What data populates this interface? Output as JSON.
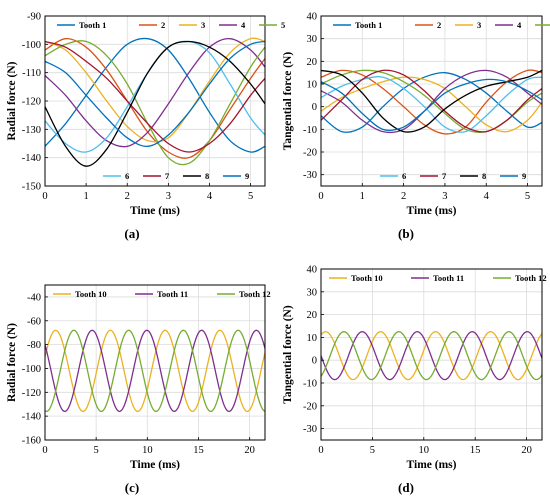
{
  "palette": {
    "1": "#0072BD",
    "2": "#D95319",
    "3": "#EDB120",
    "4": "#7E2F8E",
    "5": "#77AC30",
    "6": "#4DBEEE",
    "7": "#A2142F",
    "8": "#000000",
    "9": "#0072BD"
  },
  "chart_data": [
    {
      "type": "line",
      "panel_label": "(a)",
      "xlabel": "Time (ms)",
      "ylabel": "Radial force (N)",
      "xlim": [
        0,
        5.35
      ],
      "ylim": [
        -150,
        -90
      ],
      "xticks": [
        0,
        1,
        2,
        3,
        4,
        5
      ],
      "yticks": [
        -150,
        -140,
        -130,
        -120,
        -110,
        -100,
        -90
      ],
      "grid": true,
      "legend": [
        "top",
        "bottom"
      ],
      "series": [
        {
          "name": "Tooth 1",
          "color_key": "1",
          "legend_row": 0,
          "x": [
            0,
            0.5,
            1,
            1.5,
            2,
            2.5,
            3,
            3.5,
            4,
            4.5,
            5,
            5.35
          ],
          "y": [
            -136,
            -128,
            -118,
            -108,
            -100,
            -98,
            -102,
            -112,
            -124,
            -134,
            -138,
            -136
          ]
        },
        {
          "name": "2",
          "color_key": "2",
          "legend_row": 0,
          "x": [
            0,
            0.5,
            1,
            1.5,
            2,
            2.5,
            3,
            3.5,
            4,
            4.5,
            5,
            5.35
          ],
          "y": [
            -102,
            -98,
            -101,
            -109,
            -120,
            -131,
            -138,
            -140,
            -134,
            -123,
            -112,
            -105
          ]
        },
        {
          "name": "3",
          "color_key": "3",
          "legend_row": 0,
          "x": [
            0,
            0.5,
            1,
            1.5,
            2,
            2.5,
            3,
            3.5,
            4,
            4.5,
            5,
            5.35
          ],
          "y": [
            -99,
            -102,
            -110,
            -120,
            -129,
            -134,
            -133,
            -124,
            -113,
            -103,
            -98,
            -99
          ]
        },
        {
          "name": "4",
          "color_key": "4",
          "legend_row": 0,
          "x": [
            0,
            0.5,
            1,
            1.5,
            2,
            2.5,
            3,
            3.5,
            4,
            4.5,
            5,
            5.35
          ],
          "y": [
            -111,
            -118,
            -127,
            -134,
            -136,
            -131,
            -121,
            -110,
            -101,
            -98,
            -102,
            -108
          ]
        },
        {
          "name": "5",
          "color_key": "5",
          "legend_row": 0,
          "x": [
            0,
            0.5,
            1,
            1.5,
            2,
            2.5,
            3,
            3.5,
            4,
            4.5,
            5,
            5.35
          ],
          "y": [
            -104,
            -100,
            -99,
            -104,
            -114,
            -128,
            -140,
            -142,
            -134,
            -121,
            -108,
            -101
          ]
        },
        {
          "name": "6",
          "color_key": "6",
          "legend_row": 1,
          "x": [
            0,
            0.5,
            1,
            1.5,
            2,
            2.5,
            3,
            3.5,
            4,
            4.5,
            5,
            5.35
          ],
          "y": [
            -127,
            -135,
            -138,
            -133,
            -122,
            -110,
            -101,
            -99,
            -103,
            -114,
            -126,
            -132
          ]
        },
        {
          "name": "7",
          "color_key": "7",
          "legend_row": 1,
          "x": [
            0,
            0.5,
            1,
            1.5,
            2,
            2.5,
            3,
            3.5,
            4,
            4.5,
            5,
            5.35
          ],
          "y": [
            -99,
            -101,
            -106,
            -112,
            -120,
            -128,
            -135,
            -138,
            -135,
            -128,
            -118,
            -112
          ]
        },
        {
          "name": "8",
          "color_key": "8",
          "legend_row": 1,
          "x": [
            0,
            0.5,
            1,
            1.5,
            2,
            2.5,
            3,
            3.5,
            4,
            4.5,
            5,
            5.35
          ],
          "y": [
            -122,
            -136,
            -143,
            -137,
            -124,
            -110,
            -101,
            -99,
            -101,
            -106,
            -114,
            -121
          ]
        },
        {
          "name": "9",
          "color_key": "9",
          "legend_row": 1,
          "x": [
            0,
            0.5,
            1,
            1.5,
            2,
            2.5,
            3,
            3.5,
            4,
            4.5,
            5,
            5.35
          ],
          "y": [
            -106,
            -110,
            -118,
            -126,
            -133,
            -136,
            -132,
            -124,
            -114,
            -105,
            -100,
            -99
          ]
        }
      ]
    },
    {
      "type": "line",
      "panel_label": "(b)",
      "xlabel": "Time (ms)",
      "ylabel": "Tangential force (N)",
      "xlim": [
        0,
        5.35
      ],
      "ylim": [
        -35,
        40
      ],
      "xticks": [
        0,
        1,
        2,
        3,
        4,
        5
      ],
      "yticks": [
        -30,
        -20,
        -10,
        0,
        10,
        20,
        30,
        40
      ],
      "grid": true,
      "legend": [
        "top",
        "bottom"
      ],
      "series": [
        {
          "name": "Tooth 1",
          "color_key": "1",
          "legend_row": 0,
          "x": [
            0,
            0.5,
            1,
            1.5,
            2,
            2.5,
            3,
            3.5,
            4,
            4.5,
            5,
            5.35
          ],
          "y": [
            -4,
            -11,
            -9,
            0,
            8,
            13,
            15,
            12,
            6,
            -2,
            -9,
            -7
          ]
        },
        {
          "name": "2",
          "color_key": "2",
          "legend_row": 0,
          "x": [
            0,
            0.5,
            1,
            1.5,
            2,
            2.5,
            3,
            3.5,
            4,
            4.5,
            5,
            5.35
          ],
          "y": [
            13,
            16,
            14,
            8,
            0,
            -8,
            -12,
            -9,
            2,
            11,
            16,
            15
          ]
        },
        {
          "name": "3",
          "color_key": "3",
          "legend_row": 0,
          "x": [
            0,
            0.5,
            1,
            1.5,
            2,
            2.5,
            3,
            3.5,
            4,
            4.5,
            5,
            5.35
          ],
          "y": [
            -2,
            4,
            8,
            11,
            13,
            12,
            8,
            0,
            -8,
            -11,
            -6,
            2
          ]
        },
        {
          "name": "4",
          "color_key": "4",
          "legend_row": 0,
          "x": [
            0,
            0.5,
            1,
            1.5,
            2,
            2.5,
            3,
            3.5,
            4,
            4.5,
            5,
            5.35
          ],
          "y": [
            7,
            2,
            -6,
            -11,
            -10,
            -2,
            8,
            14,
            16,
            13,
            6,
            1
          ]
        },
        {
          "name": "5",
          "color_key": "5",
          "legend_row": 0,
          "x": [
            0,
            0.5,
            1,
            1.5,
            2,
            2.5,
            3,
            3.5,
            4,
            4.5,
            5,
            5.35
          ],
          "y": [
            10,
            14,
            16,
            15,
            11,
            5,
            -3,
            -10,
            -11,
            -6,
            2,
            6
          ]
        },
        {
          "name": "6",
          "color_key": "6",
          "legend_row": 1,
          "x": [
            0,
            0.5,
            1,
            1.5,
            2,
            2.5,
            3,
            3.5,
            4,
            4.5,
            5,
            5.35
          ],
          "y": [
            4,
            9,
            12,
            13,
            8,
            0,
            -9,
            -11,
            -4,
            5,
            12,
            13
          ]
        },
        {
          "name": "7",
          "color_key": "7",
          "legend_row": 1,
          "x": [
            0,
            0.5,
            1,
            1.5,
            2,
            2.5,
            3,
            3.5,
            4,
            4.5,
            5,
            5.35
          ],
          "y": [
            -6,
            3,
            12,
            16,
            14,
            7,
            -2,
            -9,
            -11,
            -6,
            3,
            8
          ]
        },
        {
          "name": "8",
          "color_key": "8",
          "legend_row": 1,
          "x": [
            0,
            0.5,
            1,
            1.5,
            2,
            2.5,
            3,
            3.5,
            4,
            4.5,
            5,
            5.35
          ],
          "y": [
            16,
            14,
            6,
            -5,
            -11,
            -9,
            -1,
            5,
            9,
            11,
            13,
            16
          ]
        },
        {
          "name": "9",
          "color_key": "9",
          "legend_row": 1,
          "x": [
            0,
            0.5,
            1,
            1.5,
            2,
            2.5,
            3,
            3.5,
            4,
            4.5,
            5,
            5.35
          ],
          "y": [
            11,
            6,
            -3,
            -10,
            -9,
            -2,
            6,
            10,
            12,
            11,
            7,
            3
          ]
        }
      ]
    },
    {
      "type": "line",
      "panel_label": "(c)",
      "xlabel": "Time (ms)",
      "ylabel": "Radial force (N)",
      "xlim": [
        0,
        21.5
      ],
      "ylim": [
        -160,
        -30
      ],
      "xticks": [
        0,
        5,
        10,
        15,
        20
      ],
      "yticks": [
        -160,
        -140,
        -120,
        -100,
        -80,
        -60,
        -40
      ],
      "grid": true,
      "legend": [
        "top"
      ],
      "waveform": {
        "type": "sinusoid",
        "period_ms": 5.35,
        "samples": 400
      },
      "series": [
        {
          "name": "Tooth 10",
          "color_key": "3",
          "legend_row": 0,
          "mean": -102,
          "amplitude": 34,
          "phase_deg": 20
        },
        {
          "name": "Tooth 11",
          "color_key": "4",
          "legend_row": 0,
          "mean": -102,
          "amplitude": 34,
          "phase_deg": 140
        },
        {
          "name": "Tooth 12",
          "color_key": "5",
          "legend_row": 0,
          "mean": -102,
          "amplitude": 34,
          "phase_deg": 260
        }
      ]
    },
    {
      "type": "line",
      "panel_label": "(d)",
      "xlabel": "Time (ms)",
      "ylabel": "Tangential force (N)",
      "xlim": [
        0,
        21.5
      ],
      "ylim": [
        -35,
        40
      ],
      "xticks": [
        0,
        5,
        10,
        15,
        20
      ],
      "yticks": [
        -30,
        -20,
        -10,
        0,
        10,
        20,
        30,
        40
      ],
      "grid": true,
      "legend": [
        "top"
      ],
      "waveform": {
        "type": "sinusoid",
        "period_ms": 5.35,
        "samples": 400
      },
      "series": [
        {
          "name": "Tooth 10",
          "color_key": "3",
          "legend_row": 0,
          "mean": 2,
          "amplitude": 10.5,
          "phase_deg": 60
        },
        {
          "name": "Tooth 11",
          "color_key": "4",
          "legend_row": 0,
          "mean": 2,
          "amplitude": 10.5,
          "phase_deg": 180
        },
        {
          "name": "Tooth 12",
          "color_key": "5",
          "legend_row": 0,
          "mean": 2,
          "amplitude": 10.5,
          "phase_deg": 300
        }
      ]
    }
  ]
}
